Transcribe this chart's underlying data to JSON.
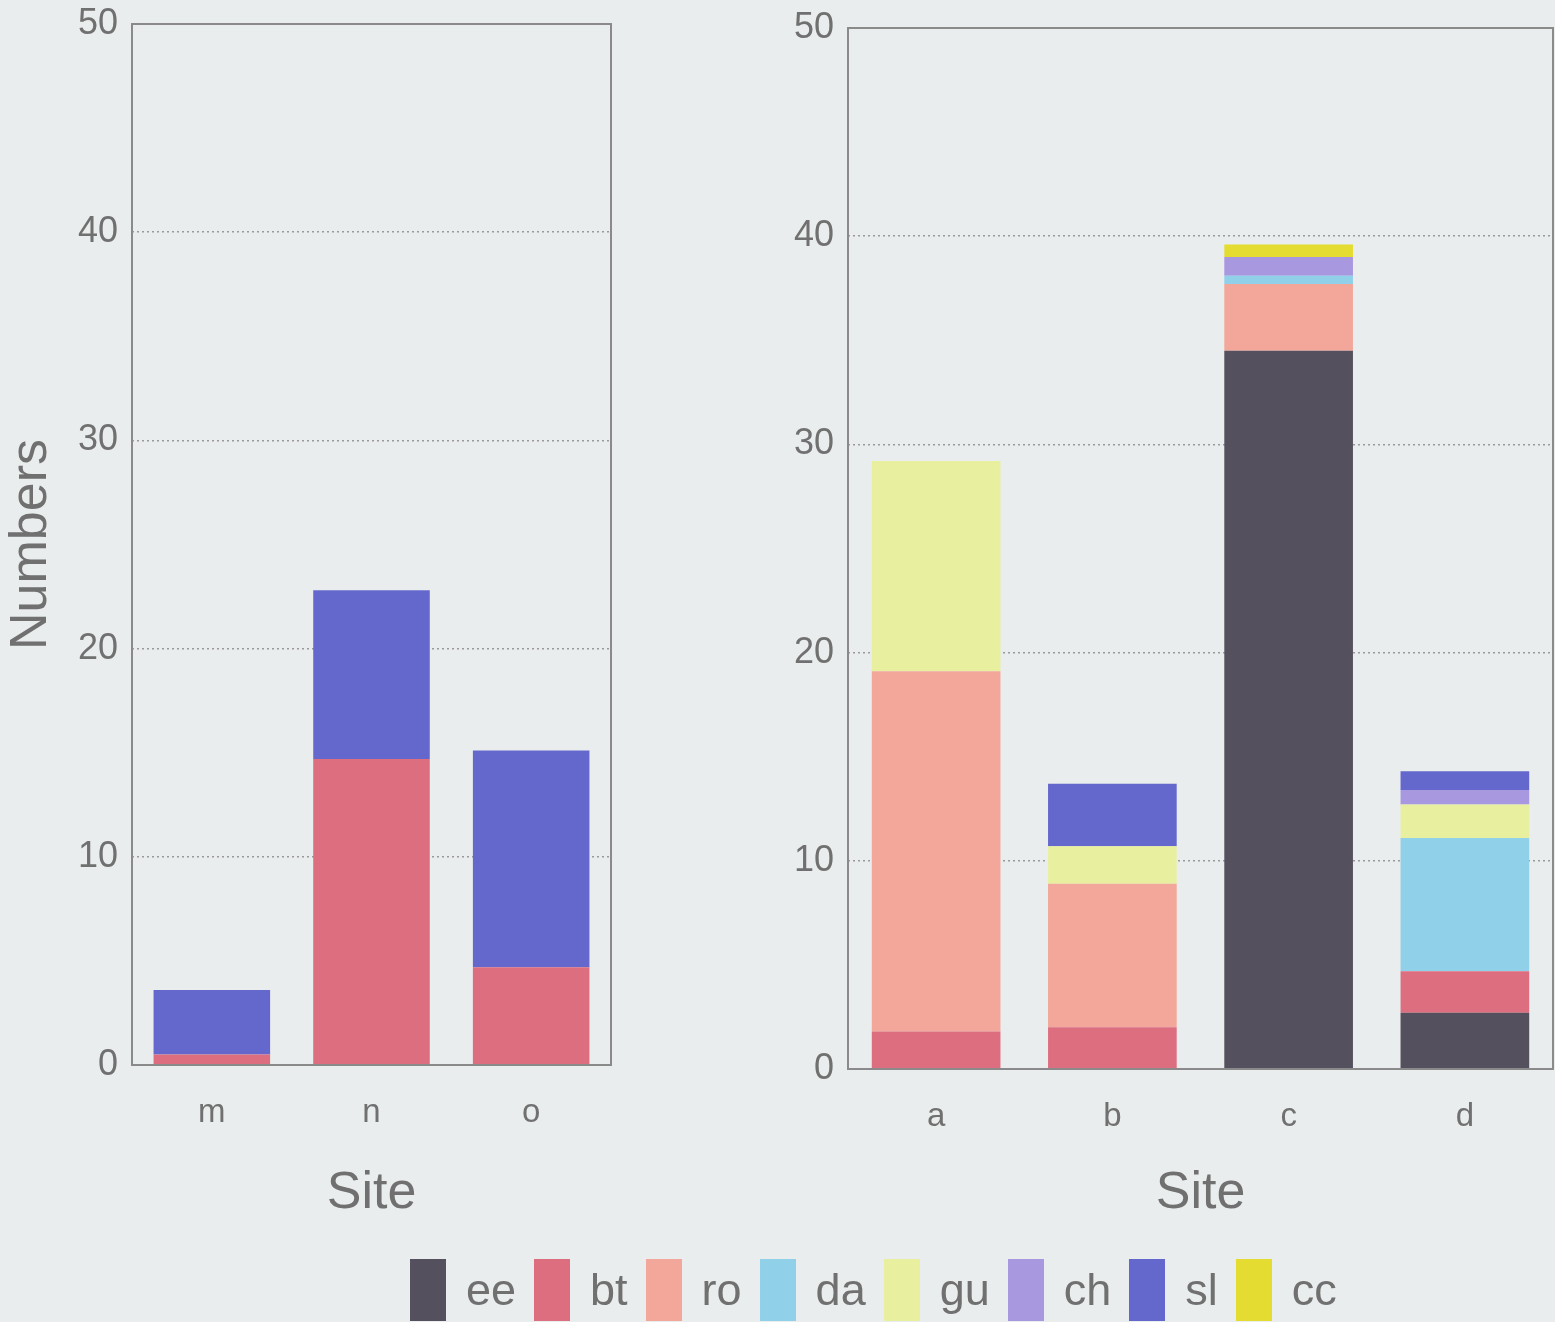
{
  "chart_data": [
    {
      "type": "bar",
      "stacked": true,
      "xlabel": "Site",
      "ylabel": "Numbers",
      "categories": [
        "m",
        "n",
        "o"
      ],
      "ylim": [
        0,
        50
      ],
      "yticks": [
        0,
        10,
        20,
        30,
        40,
        50
      ],
      "grid": "y",
      "legend": "bottom",
      "series": [
        {
          "name": "bt",
          "color": "#dc6e80",
          "values": [
            0.5,
            14.7,
            4.7
          ]
        },
        {
          "name": "sl",
          "color": "#6468cc",
          "values": [
            3.1,
            8.1,
            10.4
          ]
        }
      ]
    },
    {
      "type": "bar",
      "stacked": true,
      "xlabel": "Site",
      "categories": [
        "a",
        "b",
        "c",
        "d"
      ],
      "ylim": [
        0,
        50
      ],
      "yticks": [
        0,
        10,
        20,
        30,
        40,
        50
      ],
      "grid": "y",
      "legend": "bottom",
      "series": [
        {
          "name": "ee",
          "color": "#55505e",
          "values": [
            null,
            null,
            34.5,
            2.7
          ]
        },
        {
          "name": "bt",
          "color": "#dc6e80",
          "values": [
            1.8,
            2.0,
            null,
            2.0
          ]
        },
        {
          "name": "ro",
          "color": "#f2a79a",
          "values": [
            17.3,
            6.9,
            3.2,
            null
          ]
        },
        {
          "name": "da",
          "color": "#90d0e8",
          "values": [
            null,
            null,
            0.4,
            6.4
          ]
        },
        {
          "name": "gu",
          "color": "#e8f0a0",
          "values": [
            10.1,
            1.8,
            null,
            1.6
          ]
        },
        {
          "name": "ch",
          "color": "#a898e0",
          "values": [
            null,
            null,
            0.9,
            0.7
          ]
        },
        {
          "name": "sl",
          "color": "#6468cc",
          "values": [
            null,
            3.0,
            null,
            0.9
          ]
        },
        {
          "name": "cc",
          "color": "#e4dc30",
          "values": [
            null,
            null,
            0.6,
            null
          ]
        }
      ]
    }
  ]
}
